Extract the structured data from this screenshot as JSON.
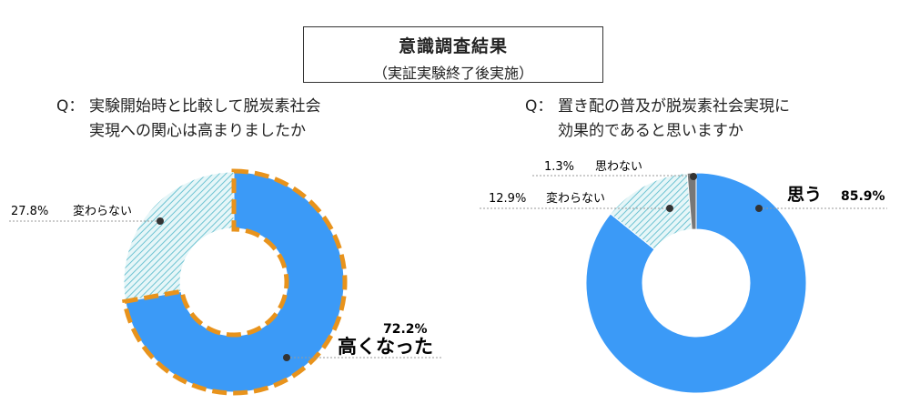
{
  "header": {
    "title": "意識調査結果",
    "subtitle": "（実証実験終了後実施）"
  },
  "colors": {
    "main": "#3b9af7",
    "hatch": "#7cc9d6",
    "highlight_border": "#e8931c",
    "neutral": "#777777"
  },
  "chart_data": [
    {
      "type": "pie",
      "donut": true,
      "question_mark": "Q：",
      "question_lines": [
        "実験開始時と比較して脱炭素社会",
        "実現への関心は高まりましたか"
      ],
      "slices": [
        {
          "label": "高くなった",
          "value": 72.2,
          "value_text": "72.2%",
          "style": "solid",
          "highlight": true
        },
        {
          "label": "変わらない",
          "value": 27.8,
          "value_text": "27.8%",
          "style": "hatch"
        }
      ]
    },
    {
      "type": "pie",
      "donut": true,
      "question_mark": "Q：",
      "question_lines": [
        "置き配の普及が脱炭素社会実現に",
        "効果的であると思いますか"
      ],
      "slices": [
        {
          "label": "思う",
          "value": 85.9,
          "value_text": "85.9%",
          "style": "solid"
        },
        {
          "label": "変わらない",
          "value": 12.9,
          "value_text": "12.9%",
          "style": "hatch"
        },
        {
          "label": "思わない",
          "value": 1.3,
          "value_text": "1.3%",
          "style": "gray"
        }
      ]
    }
  ]
}
